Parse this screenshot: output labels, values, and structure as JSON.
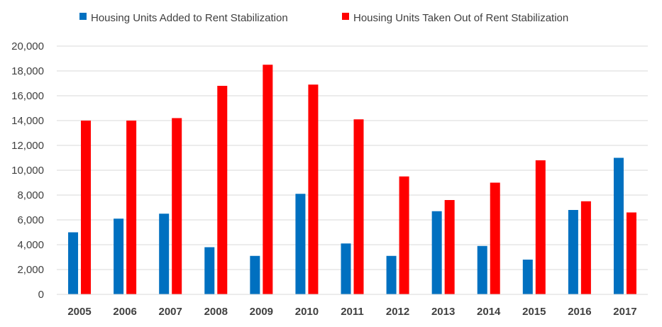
{
  "chart_data": {
    "type": "bar",
    "title": "",
    "xlabel": "",
    "ylabel": "",
    "categories": [
      "2005",
      "2006",
      "2007",
      "2008",
      "2009",
      "2010",
      "2011",
      "2012",
      "2013",
      "2014",
      "2015",
      "2016",
      "2017"
    ],
    "series": [
      {
        "name": "Housing Units Added to Rent Stabilization",
        "color": "#0070c0",
        "values": [
          5000,
          6100,
          6500,
          3800,
          3100,
          8100,
          4100,
          3100,
          6700,
          3900,
          2800,
          6800,
          11000
        ]
      },
      {
        "name": "Housing Units Taken Out of Rent Stabilization",
        "color": "#ff0000",
        "values": [
          14000,
          14000,
          14200,
          16800,
          18500,
          16900,
          14100,
          9500,
          7600,
          9000,
          10800,
          7500,
          6600
        ]
      }
    ],
    "ylim": [
      0,
      20000
    ],
    "y_ticks": [
      0,
      2000,
      4000,
      6000,
      8000,
      10000,
      12000,
      14000,
      16000,
      18000,
      20000
    ],
    "y_tick_labels": [
      "0",
      "2,000",
      "4,000",
      "6,000",
      "8,000",
      "10,000",
      "12,000",
      "14,000",
      "16,000",
      "18,000",
      "20,000"
    ],
    "grid": true,
    "legend_position": "top"
  }
}
